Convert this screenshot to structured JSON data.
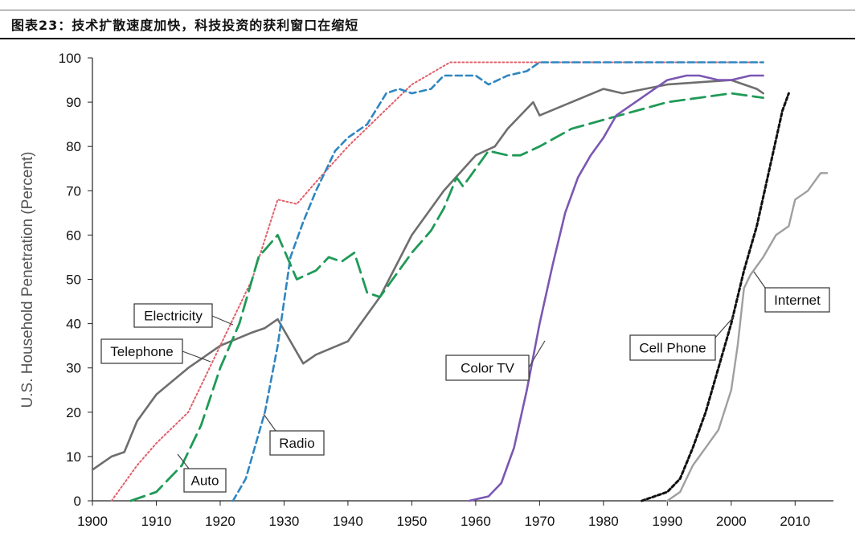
{
  "header": {
    "title": "图表23：技术扩散速度加快，科技投资的获利窗口在缩短"
  },
  "chart_data": {
    "type": "line",
    "title": "图表23：技术扩散速度加快，科技投资的获利窗口在缩短",
    "ylabel": "U.S. Household Penetration (Percent)",
    "xlabel": "",
    "xlim": [
      1900,
      2016
    ],
    "ylim": [
      0,
      100
    ],
    "x_ticks": [
      1900,
      1910,
      1920,
      1930,
      1940,
      1950,
      1960,
      1970,
      1980,
      1990,
      2000,
      2010
    ],
    "y_ticks": [
      0,
      10,
      20,
      30,
      40,
      50,
      60,
      70,
      80,
      90,
      100
    ],
    "grid": false,
    "series": [
      {
        "name": "Telephone",
        "color": "#6e6e6e",
        "dash": "solid",
        "points": [
          [
            1900,
            7
          ],
          [
            1903,
            10
          ],
          [
            1905,
            11
          ],
          [
            1907,
            18
          ],
          [
            1910,
            24
          ],
          [
            1915,
            30
          ],
          [
            1920,
            35
          ],
          [
            1925,
            38
          ],
          [
            1927,
            39
          ],
          [
            1929,
            41
          ],
          [
            1931,
            36
          ],
          [
            1933,
            31
          ],
          [
            1935,
            33
          ],
          [
            1940,
            36
          ],
          [
            1945,
            46
          ],
          [
            1950,
            60
          ],
          [
            1955,
            70
          ],
          [
            1960,
            78
          ],
          [
            1963,
            80
          ],
          [
            1965,
            84
          ],
          [
            1967,
            87
          ],
          [
            1969,
            90
          ],
          [
            1970,
            87
          ],
          [
            1975,
            90
          ],
          [
            1980,
            93
          ],
          [
            1983,
            92
          ],
          [
            1990,
            94
          ],
          [
            2000,
            95
          ],
          [
            2004,
            93
          ],
          [
            2005,
            92
          ]
        ]
      },
      {
        "name": "Electricity",
        "color": "#e0606a",
        "dash": "dotted",
        "points": [
          [
            1903,
            0
          ],
          [
            1907,
            8
          ],
          [
            1910,
            13
          ],
          [
            1915,
            20
          ],
          [
            1920,
            35
          ],
          [
            1925,
            50
          ],
          [
            1929,
            68
          ],
          [
            1932,
            67
          ],
          [
            1935,
            72
          ],
          [
            1940,
            80
          ],
          [
            1945,
            87
          ],
          [
            1950,
            94
          ],
          [
            1956,
            99
          ],
          [
            1960,
            99
          ],
          [
            1970,
            99
          ],
          [
            1980,
            99
          ],
          [
            1990,
            99
          ],
          [
            2005,
            99
          ]
        ]
      },
      {
        "name": "Radio",
        "color": "#2e86c1",
        "dash": "dashed-short",
        "points": [
          [
            1922,
            0
          ],
          [
            1924,
            5
          ],
          [
            1927,
            20
          ],
          [
            1929,
            35
          ],
          [
            1931,
            55
          ],
          [
            1933,
            63
          ],
          [
            1935,
            70
          ],
          [
            1938,
            79
          ],
          [
            1940,
            82
          ],
          [
            1943,
            85
          ],
          [
            1946,
            92
          ],
          [
            1948,
            93
          ],
          [
            1950,
            92
          ],
          [
            1953,
            93
          ],
          [
            1955,
            96
          ],
          [
            1958,
            96
          ],
          [
            1960,
            96
          ],
          [
            1962,
            94
          ],
          [
            1965,
            96
          ],
          [
            1968,
            97
          ],
          [
            1970,
            99
          ],
          [
            1980,
            99
          ],
          [
            1990,
            99
          ],
          [
            2005,
            99
          ]
        ]
      },
      {
        "name": "Auto",
        "color": "#1f9a57",
        "dash": "dashed-long",
        "points": [
          [
            1906,
            0
          ],
          [
            1910,
            2
          ],
          [
            1914,
            8
          ],
          [
            1917,
            17
          ],
          [
            1920,
            30
          ],
          [
            1923,
            40
          ],
          [
            1926,
            55
          ],
          [
            1929,
            60
          ],
          [
            1932,
            50
          ],
          [
            1935,
            52
          ],
          [
            1937,
            55
          ],
          [
            1939,
            54
          ],
          [
            1941,
            56
          ],
          [
            1943,
            47
          ],
          [
            1945,
            46
          ],
          [
            1948,
            52
          ],
          [
            1950,
            56
          ],
          [
            1953,
            61
          ],
          [
            1955,
            66
          ],
          [
            1957,
            73
          ],
          [
            1958,
            71
          ],
          [
            1960,
            75
          ],
          [
            1962,
            79
          ],
          [
            1965,
            78
          ],
          [
            1967,
            78
          ],
          [
            1970,
            80
          ],
          [
            1975,
            84
          ],
          [
            1980,
            86
          ],
          [
            1985,
            88
          ],
          [
            1990,
            90
          ],
          [
            1995,
            91
          ],
          [
            2000,
            92
          ],
          [
            2005,
            91
          ]
        ]
      },
      {
        "name": "Color TV",
        "color": "#7b57b3",
        "dash": "solid",
        "points": [
          [
            1959,
            0
          ],
          [
            1962,
            1
          ],
          [
            1964,
            4
          ],
          [
            1966,
            12
          ],
          [
            1968,
            25
          ],
          [
            1970,
            40
          ],
          [
            1972,
            53
          ],
          [
            1974,
            65
          ],
          [
            1976,
            73
          ],
          [
            1978,
            78
          ],
          [
            1980,
            82
          ],
          [
            1982,
            87
          ],
          [
            1985,
            90
          ],
          [
            1988,
            93
          ],
          [
            1990,
            95
          ],
          [
            1993,
            96
          ],
          [
            1995,
            96
          ],
          [
            1998,
            95
          ],
          [
            2000,
            95
          ],
          [
            2003,
            96
          ],
          [
            2005,
            96
          ]
        ]
      },
      {
        "name": "Cell Phone",
        "color": "#111111",
        "dash": "dotted-bold",
        "points": [
          [
            1986,
            0
          ],
          [
            1988,
            1
          ],
          [
            1990,
            2
          ],
          [
            1992,
            5
          ],
          [
            1994,
            12
          ],
          [
            1996,
            20
          ],
          [
            1998,
            30
          ],
          [
            2000,
            40
          ],
          [
            2002,
            52
          ],
          [
            2004,
            62
          ],
          [
            2006,
            75
          ],
          [
            2008,
            88
          ],
          [
            2009,
            92
          ]
        ]
      },
      {
        "name": "Internet",
        "color": "#9f9f9f",
        "dash": "solid",
        "points": [
          [
            1990,
            0
          ],
          [
            1992,
            2
          ],
          [
            1994,
            8
          ],
          [
            1996,
            12
          ],
          [
            1998,
            16
          ],
          [
            2000,
            25
          ],
          [
            2001,
            35
          ],
          [
            2002,
            48
          ],
          [
            2003,
            51
          ],
          [
            2005,
            55
          ],
          [
            2007,
            60
          ],
          [
            2009,
            62
          ],
          [
            2010,
            68
          ],
          [
            2012,
            70
          ],
          [
            2014,
            74
          ],
          [
            2015,
            74
          ]
        ]
      }
    ],
    "annotations": [
      {
        "text": "Electricity"
      },
      {
        "text": "Telephone"
      },
      {
        "text": "Radio"
      },
      {
        "text": "Auto"
      },
      {
        "text": "Color TV"
      },
      {
        "text": "Cell Phone"
      },
      {
        "text": "Internet"
      }
    ]
  }
}
